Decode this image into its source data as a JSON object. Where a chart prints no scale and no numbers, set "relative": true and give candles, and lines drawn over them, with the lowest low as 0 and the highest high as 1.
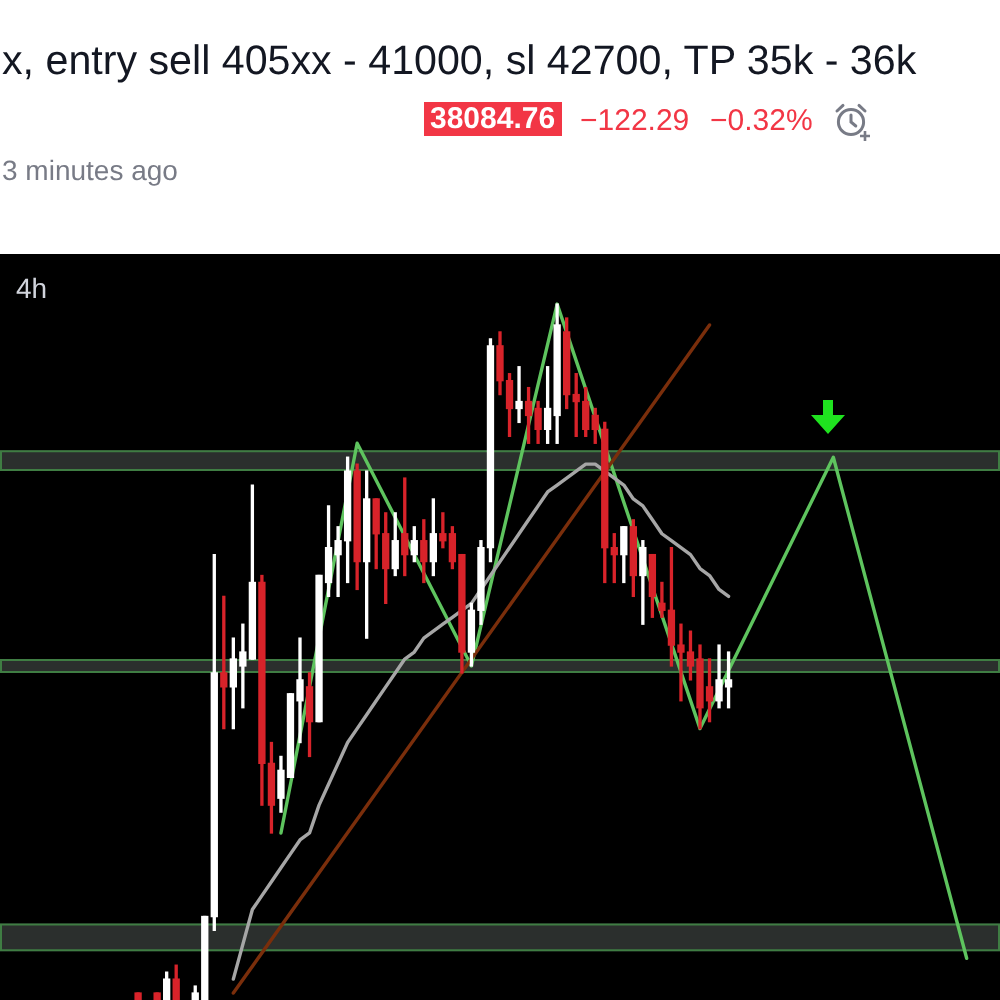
{
  "chart_data": {
    "type": "candlestick",
    "title": "x, entry sell 405xx - 41000, sl 42700, TP 35k - 36k",
    "annotations": [
      "38084.76",
      "−122.29",
      "−0.32%",
      "3 minutes ago",
      "4h"
    ],
    "relative": true,
    "marker": "none",
    "tick_labels": false,
    "categories": [
      null,
      null,
      null,
      null,
      null,
      null,
      null,
      null,
      null,
      null,
      null,
      null,
      null,
      null,
      null,
      null,
      null,
      null,
      null,
      null,
      null,
      null,
      null,
      null,
      null,
      null,
      null,
      null,
      null,
      null,
      null,
      null,
      null,
      null,
      null,
      null,
      null,
      null,
      null,
      null,
      null,
      null,
      null,
      null,
      null,
      null,
      null,
      null,
      null,
      null,
      null,
      null,
      null,
      null,
      null,
      null,
      null,
      null,
      null,
      null,
      null,
      null,
      null,
      null,
      null,
      null,
      null,
      null,
      null,
      null,
      null,
      null,
      null,
      null,
      null,
      null,
      null,
      null,
      null,
      null,
      null,
      null,
      null,
      null,
      null,
      null,
      null,
      null,
      null,
      null,
      null,
      null,
      null,
      null,
      null,
      null,
      null,
      null,
      null,
      null,
      null,
      null,
      null,
      null,
      null
    ],
    "bands": [
      {
        "axis": "y",
        "from": 0.76,
        "to": 0.79,
        "color": "#2b2f2d"
      },
      {
        "axis": "y",
        "from": 0.47,
        "to": 0.49,
        "color": "#2b2f2d"
      },
      {
        "axis": "y",
        "from": 0.07,
        "to": 0.11,
        "color": "#2b2f2d"
      }
    ],
    "series": [
      {
        "ohlc": [
          null,
          null,
          null,
          null,
          null,
          null,
          null,
          null,
          null,
          null,
          null,
          null,
          null,
          null,
          [
            0.01,
            0.01,
            0,
            0
          ],
          null,
          [
            0.01,
            0.01,
            0,
            0
          ],
          [
            0,
            0.04,
            0,
            0.03
          ],
          [
            0.03,
            0.05,
            0,
            0
          ],
          null,
          [
            0,
            0.02,
            0,
            0.01
          ],
          [
            0,
            0.12,
            0,
            0.12
          ],
          [
            0.12,
            0.64,
            0.1,
            0.47
          ],
          [
            0.47,
            0.58,
            0.39,
            0.45
          ],
          [
            0.45,
            0.52,
            0.39,
            0.49
          ],
          [
            0.48,
            0.54,
            0.42,
            0.5
          ],
          [
            0.49,
            0.74,
            0.49,
            0.6
          ],
          [
            0.6,
            0.61,
            0.28,
            0.34
          ],
          [
            0.34,
            0.37,
            0.24,
            0.28
          ],
          [
            0.29,
            0.35,
            0.27,
            0.33
          ],
          [
            0.32,
            0.44,
            0.32,
            0.44
          ],
          [
            0.43,
            0.52,
            0.37,
            0.46
          ],
          [
            0.45,
            0.47,
            0.35,
            0.4
          ],
          [
            0.4,
            0.61,
            0.4,
            0.61
          ],
          [
            0.6,
            0.71,
            0.58,
            0.65
          ],
          [
            0.64,
            0.68,
            0.58,
            0.66
          ],
          [
            0.66,
            0.78,
            0.6,
            0.76
          ],
          [
            0.76,
            0.77,
            0.59,
            0.63
          ],
          [
            0.63,
            0.76,
            0.52,
            0.72
          ],
          [
            0.72,
            0.72,
            0.62,
            0.67
          ],
          [
            0.67,
            0.7,
            0.57,
            0.62
          ],
          [
            0.62,
            0.7,
            0.61,
            0.66
          ],
          [
            0.67,
            0.75,
            0.61,
            0.64
          ],
          [
            0.64,
            0.68,
            0.63,
            0.66
          ],
          [
            0.66,
            0.69,
            0.6,
            0.63
          ],
          [
            0.63,
            0.72,
            0.61,
            0.67
          ],
          [
            0.67,
            0.7,
            0.65,
            0.66
          ],
          [
            0.67,
            0.68,
            0.62,
            0.63
          ],
          [
            0.64,
            0.64,
            0.47,
            0.5
          ],
          [
            0.5,
            0.57,
            0.48,
            0.56
          ],
          [
            0.56,
            0.66,
            0.54,
            0.65
          ],
          [
            0.65,
            0.95,
            0.63,
            0.94
          ],
          [
            0.94,
            0.96,
            0.87,
            0.89
          ],
          [
            0.89,
            0.9,
            0.81,
            0.85
          ],
          [
            0.85,
            0.91,
            0.83,
            0.86
          ],
          [
            0.86,
            0.88,
            0.8,
            0.84
          ],
          [
            0.85,
            0.86,
            0.8,
            0.82
          ],
          [
            0.82,
            0.91,
            0.8,
            0.85
          ],
          [
            0.84,
            1,
            0.8,
            0.97
          ],
          [
            0.96,
            0.98,
            0.85,
            0.87
          ],
          [
            0.87,
            0.9,
            0.81,
            0.86
          ],
          [
            0.86,
            0.88,
            0.81,
            0.82
          ],
          [
            0.84,
            0.85,
            0.8,
            0.82
          ],
          [
            0.82,
            0.83,
            0.6,
            0.65
          ],
          [
            0.65,
            0.67,
            0.6,
            0.64
          ],
          [
            0.64,
            0.68,
            0.6,
            0.68
          ],
          [
            0.68,
            0.69,
            0.58,
            0.61
          ],
          [
            0.61,
            0.66,
            0.54,
            0.65
          ],
          [
            0.64,
            0.64,
            0.55,
            0.58
          ],
          [
            0.57,
            0.6,
            0.55,
            0.56
          ],
          [
            0.56,
            0.65,
            0.48,
            0.51
          ],
          [
            0.51,
            0.54,
            0.43,
            0.5
          ],
          [
            0.5,
            0.53,
            0.46,
            0.48
          ],
          [
            0.49,
            0.51,
            0.39,
            0.42
          ],
          [
            0.45,
            0.49,
            0.4,
            0.43
          ],
          [
            0.43,
            0.51,
            0.42,
            0.46
          ],
          [
            0.45,
            0.5,
            0.42,
            0.46
          ],
          null,
          null,
          null,
          null,
          null,
          null,
          null,
          null,
          null,
          null,
          null,
          null,
          null,
          null,
          null,
          null,
          null,
          null,
          null,
          null,
          null,
          null,
          null,
          null,
          null,
          null,
          null,
          null
        ],
        "colors": [
          null,
          null,
          null,
          null,
          null,
          null,
          null,
          null,
          null,
          null,
          null,
          null,
          null,
          null,
          "#d8232a",
          null,
          "#d8232a",
          "#ffffff",
          "#d8232a",
          null,
          "#ffffff",
          "#ffffff",
          "#ffffff",
          "#d8232a",
          "#ffffff",
          "#ffffff",
          "#ffffff",
          "#d8232a",
          "#d8232a",
          "#ffffff",
          "#ffffff",
          "#ffffff",
          "#d8232a",
          "#ffffff",
          "#ffffff",
          "#ffffff",
          "#ffffff",
          "#d8232a",
          "#ffffff",
          "#d8232a",
          "#d8232a",
          "#ffffff",
          "#d8232a",
          "#ffffff",
          "#d8232a",
          "#ffffff",
          "#d8232a",
          "#d8232a",
          "#d8232a",
          "#ffffff",
          "#ffffff",
          "#ffffff",
          "#d8232a",
          "#d8232a",
          "#ffffff",
          "#d8232a",
          "#d8232a",
          "#ffffff",
          "#ffffff",
          "#d8232a",
          "#d8232a",
          "#d8232a",
          "#d8232a",
          "#d8232a",
          "#d8232a",
          "#ffffff",
          "#d8232a",
          "#ffffff",
          "#d8232a",
          "#d8232a",
          "#d8232a",
          "#d8232a",
          "#d8232a",
          "#d8232a",
          "#d8232a",
          "#ffffff",
          "#ffffff",
          null,
          null,
          null,
          null,
          null,
          null,
          null,
          null,
          null,
          null,
          null,
          null,
          null,
          null,
          null,
          null,
          null,
          null,
          null,
          null,
          null,
          null,
          null,
          null,
          null,
          null,
          null,
          null
        ]
      },
      {
        "type": "line",
        "color": "#a6a6a6",
        "values": [
          null,
          null,
          null,
          null,
          null,
          null,
          null,
          null,
          null,
          null,
          null,
          null,
          null,
          null,
          null,
          null,
          null,
          null,
          null,
          null,
          null,
          null,
          null,
          null,
          0.03,
          0.08,
          0.13,
          0.15,
          0.17,
          0.19,
          0.21,
          0.23,
          0.24,
          0.28,
          0.31,
          0.34,
          0.37,
          0.39,
          0.41,
          0.43,
          0.45,
          0.47,
          0.49,
          0.5,
          0.52,
          0.53,
          0.54,
          0.55,
          0.56,
          0.57,
          0.59,
          0.61,
          0.63,
          0.65,
          0.67,
          0.69,
          0.71,
          0.73,
          0.74,
          0.75,
          0.76,
          0.77,
          0.77,
          0.76,
          0.75,
          0.74,
          0.72,
          0.71,
          0.69,
          0.67,
          0.66,
          0.65,
          0.64,
          0.62,
          0.61,
          0.59,
          0.58,
          null,
          null,
          null,
          null,
          null,
          null,
          null,
          null,
          null,
          null,
          null,
          null,
          null,
          null,
          null,
          null,
          null,
          null,
          null,
          null,
          null,
          null,
          null,
          null,
          null,
          null,
          null,
          null
        ]
      },
      {
        "type": "line",
        "color": "#7a2e0b",
        "values": [
          null,
          null,
          null,
          null,
          null,
          null,
          null,
          null,
          null,
          null,
          null,
          null,
          null,
          null,
          null,
          null,
          null,
          null,
          null,
          null,
          null,
          null,
          null,
          null,
          0.01,
          null,
          null,
          null,
          null,
          null,
          null,
          null,
          null,
          null,
          null,
          null,
          null,
          null,
          null,
          null,
          null,
          null,
          null,
          null,
          null,
          null,
          null,
          null,
          null,
          null,
          null,
          null,
          null,
          null,
          null,
          null,
          null,
          null,
          null,
          null,
          null,
          null,
          null,
          null,
          null,
          null,
          null,
          null,
          null,
          null,
          null,
          null,
          null,
          null,
          0.97,
          null,
          null,
          null,
          null,
          null,
          null,
          null,
          null,
          null,
          null,
          null,
          null,
          null,
          null,
          null,
          null,
          null,
          null,
          null,
          null,
          null,
          null,
          null,
          null,
          null,
          null,
          null,
          null,
          null,
          null
        ]
      },
      {
        "type": "line",
        "color": "#5ec45e",
        "values": [
          null,
          null,
          null,
          null,
          null,
          null,
          null,
          null,
          null,
          null,
          null,
          null,
          null,
          null,
          null,
          null,
          null,
          null,
          null,
          null,
          null,
          null,
          null,
          null,
          null,
          null,
          null,
          null,
          null,
          0.24,
          null,
          null,
          null,
          null,
          null,
          null,
          null,
          0.8,
          null,
          null,
          null,
          null,
          null,
          null,
          null,
          null,
          null,
          null,
          null,
          0.48,
          null,
          null,
          null,
          null,
          null,
          null,
          null,
          null,
          1,
          null,
          null,
          null,
          null,
          null,
          null,
          null,
          null,
          null,
          null,
          null,
          null,
          null,
          null,
          0.39,
          null,
          null,
          null,
          null,
          null,
          null,
          null,
          null,
          null,
          null,
          null,
          null,
          null,
          0.78,
          null,
          null,
          null,
          null,
          null,
          null,
          null,
          null,
          null,
          null,
          null,
          null,
          null,
          0.06,
          null,
          null,
          null
        ]
      }
    ]
  }
}
